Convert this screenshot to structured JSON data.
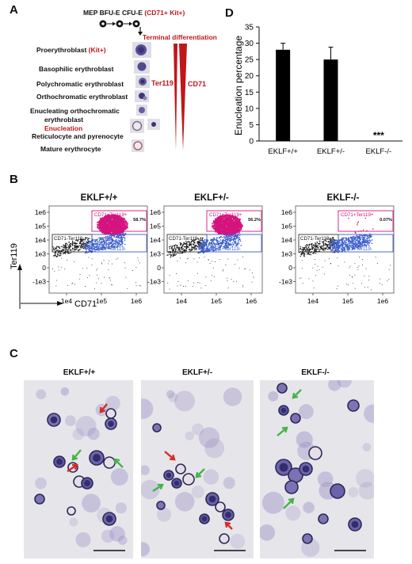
{
  "panelA": {
    "letter": "A",
    "progenitors": "MEP BFU-E CFU-E",
    "progenitor_markers": "(CD71+ Kit+)",
    "terminal_label": "Terminal differentiation",
    "stages": [
      {
        "label": "Proerythroblast",
        "suffix": " (Kit+)"
      },
      {
        "label": "Basophilic erythroblast",
        "suffix": ""
      },
      {
        "label": "Polychromatic erythroblast",
        "suffix": ""
      },
      {
        "label": "Orthochromatic erythroblast",
        "suffix": ""
      },
      {
        "label": "Enucleating orthochromatic",
        "suffix": ""
      },
      {
        "label": "erythroblast",
        "suffix": ""
      },
      {
        "label": "Enucleation",
        "suffix": ""
      },
      {
        "label": "Reticulocyte and pyrenocyte",
        "suffix": ""
      },
      {
        "label": "Mature erythrocyte",
        "suffix": ""
      }
    ],
    "marker_ter119": "Ter119",
    "marker_cd71": "CD71",
    "colors": {
      "accent": "#c0161b"
    }
  },
  "panelD": {
    "letter": "D",
    "chart_data": {
      "type": "bar",
      "categories": [
        "EKLF+/+",
        "EKLF+/-",
        "EKLF-/-"
      ],
      "values": [
        28,
        25,
        0
      ],
      "errors": [
        2,
        3.8,
        0
      ],
      "ylabel": "Enucleation percentage",
      "ylim": [
        0,
        35
      ],
      "yticks": [
        "0",
        "5",
        "10",
        "15",
        "20",
        "25",
        "30",
        "35"
      ],
      "significance": [
        "",
        "",
        "***"
      ],
      "grid": false
    }
  },
  "panelB": {
    "letter": "B",
    "genotypes": [
      "EKLF+/+",
      "EKLF+/-",
      "EKLF-/-"
    ],
    "y_axis_label": "Ter119",
    "x_axis_label": "CD71",
    "yticks": [
      "1e6",
      "1e5",
      "1e4",
      "1e3",
      "0",
      "-1e3"
    ],
    "xticks": [
      "1e4",
      "1e5",
      "1e6"
    ],
    "gate_top": "CD71+Ter119+",
    "gate_left": "CD71-Ter119-",
    "gate_bottom": "CD71+Ter119-",
    "percentages": [
      "58.7%",
      "56.2%",
      "0.07%"
    ],
    "colors": {
      "magenta": "#d4147e",
      "blue": "#3c5fcc",
      "black": "#111111"
    }
  },
  "panelC": {
    "letter": "C",
    "genotypes": [
      "EKLF+/+",
      "EKLF+/-",
      "EKLF-/-"
    ]
  }
}
